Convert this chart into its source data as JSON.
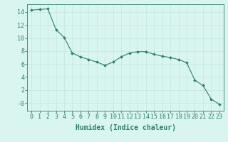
{
  "x": [
    0,
    1,
    2,
    3,
    4,
    5,
    6,
    7,
    8,
    9,
    10,
    11,
    12,
    13,
    14,
    15,
    16,
    17,
    18,
    19,
    20,
    21,
    22,
    23
  ],
  "y": [
    14.3,
    14.4,
    14.5,
    11.3,
    10.1,
    7.7,
    7.1,
    6.7,
    6.3,
    5.8,
    6.3,
    7.1,
    7.7,
    7.9,
    7.9,
    7.5,
    7.2,
    7.0,
    6.7,
    6.2,
    3.5,
    2.7,
    0.6,
    -0.2
  ],
  "line_color": "#2e7d6e",
  "marker": "D",
  "marker_size": 2,
  "bg_color": "#d9f5f0",
  "grid_color": "#c8e8e0",
  "xlabel": "Humidex (Indice chaleur)",
  "xlim": [
    -0.5,
    23.5
  ],
  "ylim": [
    -1.2,
    15.2
  ],
  "yticks": [
    0,
    2,
    4,
    6,
    8,
    10,
    12,
    14
  ],
  "ytick_labels": [
    "-0",
    "2",
    "4",
    "6",
    "8",
    "10",
    "12",
    "14"
  ],
  "xticks": [
    0,
    1,
    2,
    3,
    4,
    5,
    6,
    7,
    8,
    9,
    10,
    11,
    12,
    13,
    14,
    15,
    16,
    17,
    18,
    19,
    20,
    21,
    22,
    23
  ],
  "fontsize_ticks": 6,
  "fontsize_label": 7
}
